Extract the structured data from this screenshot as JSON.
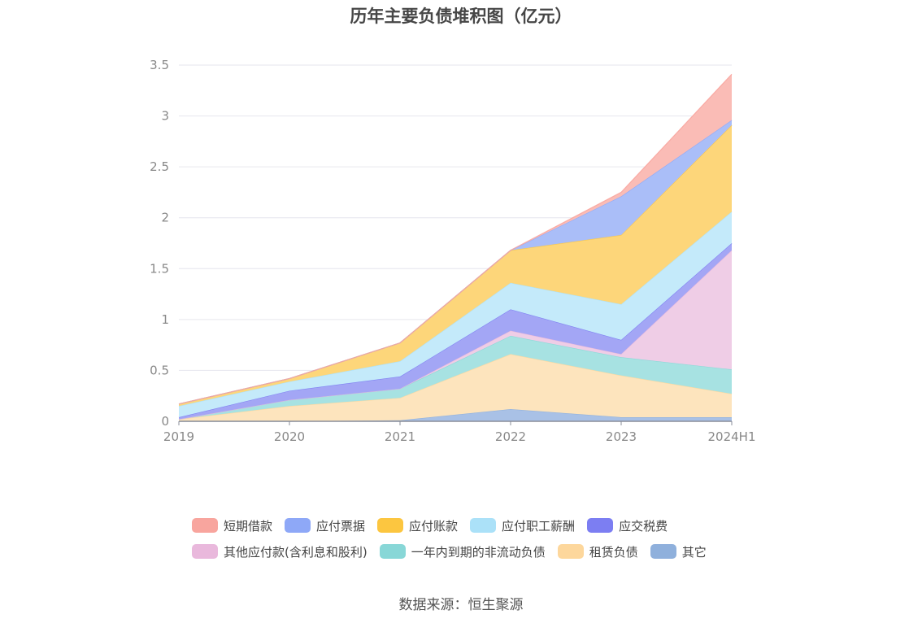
{
  "chart_data": {
    "type": "area",
    "stacked": true,
    "title": "历年主要负债堆积图（亿元）",
    "categories": [
      "2019",
      "2020",
      "2021",
      "2022",
      "2023",
      "2024H1"
    ],
    "yticks": [
      "0",
      "0.5",
      "1",
      "1.5",
      "2",
      "2.5",
      "3",
      "3.5"
    ],
    "ylim": [
      0,
      3.5
    ],
    "grid": true,
    "legend_position": "bottom",
    "series": [
      {
        "name": "其它",
        "color": "#8fb0dc",
        "fill": "#a9c1e6",
        "values": [
          0.0,
          0.0,
          0.01,
          0.12,
          0.04,
          0.04
        ]
      },
      {
        "name": "租赁负债",
        "color": "#fdd79c",
        "fill": "#fde4bd",
        "values": [
          0.02,
          0.15,
          0.22,
          0.54,
          0.41,
          0.23
        ]
      },
      {
        "name": "一年内到期的非流动负债",
        "color": "#88d7d7",
        "fill": "#a7e2e2",
        "values": [
          0.0,
          0.06,
          0.09,
          0.18,
          0.18,
          0.24
        ]
      },
      {
        "name": "其他应付款(含利息和股利)",
        "color": "#e9b8dc",
        "fill": "#efcde6",
        "values": [
          0.0,
          0.0,
          0.0,
          0.05,
          0.03,
          1.17
        ]
      },
      {
        "name": "应交税费",
        "color": "#7c7ef2",
        "fill": "#a3a6f5",
        "values": [
          0.02,
          0.09,
          0.12,
          0.21,
          0.14,
          0.07
        ]
      },
      {
        "name": "应付职工薪酬",
        "color": "#abe1f8",
        "fill": "#c4eafa",
        "values": [
          0.11,
          0.09,
          0.15,
          0.26,
          0.35,
          0.31
        ]
      },
      {
        "name": "应付账款",
        "color": "#fcc640",
        "fill": "#fdd67a",
        "values": [
          0.02,
          0.03,
          0.18,
          0.32,
          0.68,
          0.85
        ]
      },
      {
        "name": "应付票据",
        "color": "#8ea8f7",
        "fill": "#aabef8",
        "values": [
          0.0,
          0.0,
          0.0,
          0.0,
          0.38,
          0.05
        ]
      },
      {
        "name": "短期借款",
        "color": "#f8a59e",
        "fill": "#fabcb6",
        "values": [
          0.0,
          0.0,
          0.0,
          0.0,
          0.04,
          0.45
        ]
      }
    ],
    "legend": [
      [
        "短期借款",
        "应付票据",
        "应付账款",
        "应付职工薪酬",
        "应交税费"
      ],
      [
        "其他应付款(含利息和股利)",
        "一年内到期的非流动负债",
        "租赁负债",
        "其它"
      ]
    ]
  },
  "source_note": "数据来源：恒生聚源"
}
